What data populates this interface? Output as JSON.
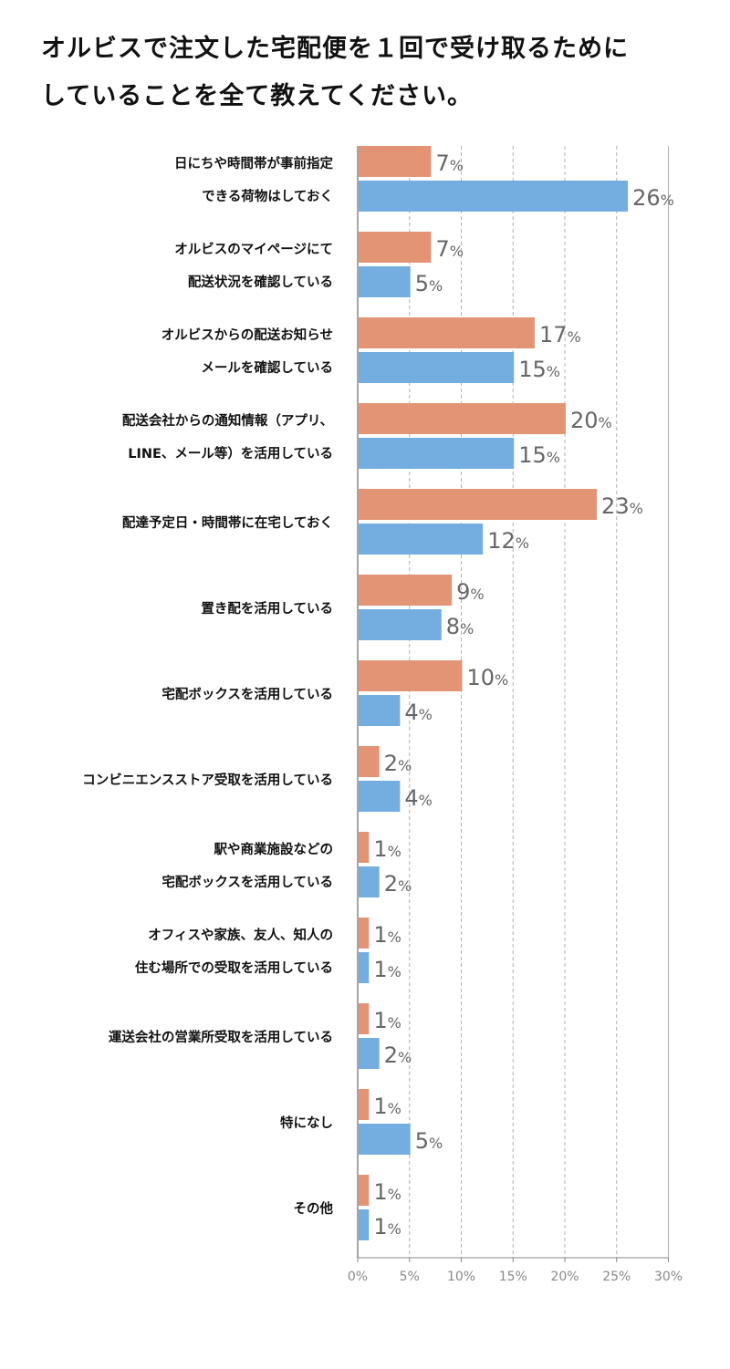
{
  "title": {
    "line1": "オルビスで注文した宅配便を１回で受け取るために",
    "line2": "していることを全て教えてください。"
  },
  "colors": {
    "series1": "#e39475",
    "series2": "#74ade0",
    "value_text": "#666666",
    "tick_text": "#888888",
    "grid": "#b0b0b0"
  },
  "chart_data": {
    "type": "bar",
    "orientation": "horizontal",
    "title": "オルビスで注文した宅配便を１回で受け取るためにしていることを全て教えてください。",
    "xlabel": "",
    "ylabel": "",
    "xlim": [
      0,
      30
    ],
    "unit": "%",
    "grid": true,
    "x_ticks": [
      "0%",
      "5%",
      "10%",
      "15%",
      "20%",
      "25%",
      "30%"
    ],
    "categories": [
      [
        "日にちや時間帯が事前指定",
        "できる荷物はしておく"
      ],
      [
        "オルビスのマイページにて",
        "配送状況を確認している"
      ],
      [
        "オルビスからの配送お知らせ",
        "メールを確認している"
      ],
      [
        "配送会社からの通知情報（アプリ、",
        "LINE、メール等）を活用している"
      ],
      [
        "配達予定日・時間帯に在宅しておく"
      ],
      [
        "置き配を活用している"
      ],
      [
        "宅配ボックスを活用している"
      ],
      [
        "コンビニエンスストア受取を活用している"
      ],
      [
        "駅や商業施設などの",
        "宅配ボックスを活用している"
      ],
      [
        "オフィスや家族、友人、知人の",
        "住む場所での受取を活用している"
      ],
      [
        "運送会社の営業所受取を活用している"
      ],
      [
        "特になし"
      ],
      [
        "その他"
      ]
    ],
    "series": [
      {
        "values": [
          7,
          7,
          17,
          20,
          23,
          9,
          10,
          2,
          1,
          1,
          1,
          1,
          1
        ]
      },
      {
        "values": [
          26,
          5,
          15,
          15,
          12,
          8,
          4,
          4,
          2,
          1,
          2,
          5,
          1
        ]
      }
    ]
  }
}
